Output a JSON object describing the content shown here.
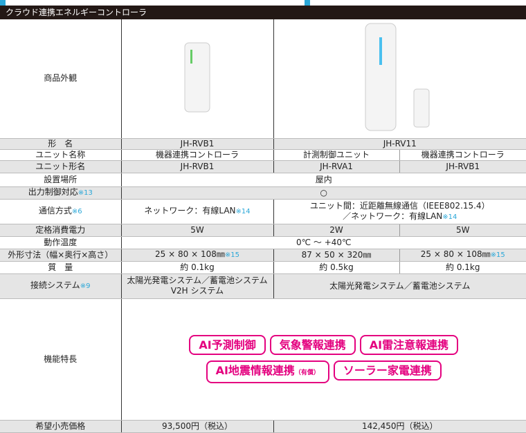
{
  "header": {
    "title": "クラウド連携エネルギーコントローラ"
  },
  "table": {
    "rows": [
      {
        "label": "商品外観"
      },
      {
        "label": "形　名",
        "cells": [
          "JH-RVB1",
          "JH-RV11"
        ]
      },
      {
        "label": "ユニット名称",
        "cells": [
          "機器連携コントローラ",
          "計測制御ユニット",
          "機器連携コントローラ"
        ]
      },
      {
        "label": "ユニット形名",
        "cells": [
          "JH-RVB1",
          "JH-RVA1",
          "JH-RVB1"
        ]
      },
      {
        "label": "設置場所",
        "cells": [
          "屋内"
        ]
      },
      {
        "label": {
          "text": "出力制御対応",
          "note": "※13"
        },
        "cells": [
          "○"
        ]
      },
      {
        "label": {
          "text": "通信方式",
          "note": "※6"
        },
        "cells": [
          {
            "text": "ネットワーク：有線LAN",
            "note": "※14"
          },
          {
            "text": "ユニット間：近距離無線通信（IEEE802.15.4）",
            "text2": "／ネットワーク：有線LAN",
            "note": "※14"
          }
        ]
      },
      {
        "label": "定格消費電力",
        "cells": [
          "5W",
          "2W",
          "5W"
        ]
      },
      {
        "label": "動作温度",
        "cells": [
          "0℃ ～ +40℃"
        ]
      },
      {
        "label": "外形寸法（幅×奥行×高さ）",
        "cells": [
          {
            "text": "25 × 80 × 108㎜",
            "note": "※15"
          },
          "87 × 50 × 320㎜",
          {
            "text": "25 × 80 × 108㎜",
            "note": "※15"
          }
        ]
      },
      {
        "label": "質　量",
        "cells": [
          "約 0.1kg",
          "約 0.5kg",
          "約 0.1kg"
        ]
      },
      {
        "label": {
          "text": "接続システム",
          "note": "※9"
        },
        "cells": [
          {
            "text": "太陽光発電システム／蓄電池システム",
            "text2": "V2H システム"
          },
          "太陽光発電システム／蓄電池システム"
        ]
      },
      {
        "label": "機能特長",
        "features": [
          "AI予測制御",
          "気象警報連携",
          "AI雷注意報連携",
          {
            "text": "AI地震情報連携",
            "note": "（有償）"
          },
          "ソーラー家電連携"
        ]
      },
      {
        "label": "希望小売価格",
        "cells": [
          "93,500円（税込）",
          "142,450円（税込）"
        ]
      }
    ]
  }
}
